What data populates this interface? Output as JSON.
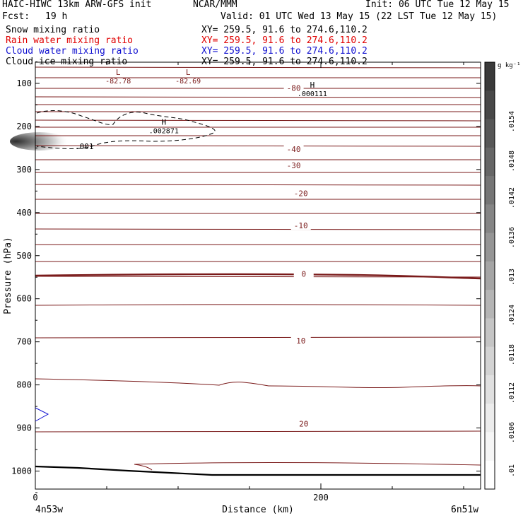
{
  "header": {
    "model_line": "HAIC-HIWC 13km ARW-GFS init",
    "org": "NCAR/MMM",
    "init": "Init: 06 UTC Tue 12 May 15",
    "fcst_label": "Fcst:",
    "fcst_value": "19 h",
    "valid": "Valid: 01 UTC Wed 13 May 15 (22 LST Tue 12 May 15)",
    "fields": [
      {
        "name": "Snow mixing ratio",
        "xy": "XY= 259.5, 91.6 to 274.6,110.2",
        "color": "#000000"
      },
      {
        "name": "Rain water mixing ratio",
        "xy": "XY= 259.5, 91.6 to 274.6,110.2",
        "color": "#e00000"
      },
      {
        "name": "Cloud water mixing ratio",
        "xy": "XY= 259.5, 91.6 to 274.6,110.2",
        "color": "#1010d0"
      },
      {
        "name": "Cloud ice mixing ratio",
        "xy": "XY= 259.5, 91.6 to 274.6,110.2",
        "color": "#000000"
      }
    ]
  },
  "chart_data": {
    "type": "contour",
    "ylabel": "Pressure (hPa)",
    "xlabel": "Distance (km)",
    "x_start_label": "4n53w",
    "x_end_label": "6n51w",
    "xlim": [
      0,
      310
    ],
    "ylim": [
      1050,
      50
    ],
    "x_ticks": [
      0,
      200
    ],
    "y_ticks": [
      100,
      200,
      300,
      400,
      500,
      600,
      700,
      800,
      900,
      1000
    ],
    "isotherm_color": "#7a1a1a",
    "temperature_labels": [
      {
        "text": "-80",
        "x": 181,
        "p": 111
      },
      {
        "text": "-40",
        "x": 181,
        "p": 253
      },
      {
        "text": "-30",
        "x": 181,
        "p": 290
      },
      {
        "text": "-20",
        "x": 186,
        "p": 355
      },
      {
        "text": "-10",
        "x": 186,
        "p": 430
      },
      {
        "text": "0",
        "x": 188,
        "p": 542
      },
      {
        "text": "10",
        "x": 186,
        "p": 697
      },
      {
        "text": "20",
        "x": 188,
        "p": 890
      }
    ],
    "extrema": [
      {
        "type": "L",
        "value": "-82.78",
        "x": 58,
        "p": 80
      },
      {
        "type": "L",
        "value": "-82.69",
        "x": 107,
        "p": 80
      },
      {
        "type": "H",
        "value": ".000111",
        "x": 194,
        "p": 110
      },
      {
        "type": "H",
        "value": ".002871",
        "x": 90,
        "p": 196
      }
    ],
    "cloud_contour_label": ".001",
    "colorbar": {
      "unit": "g kg⁻¹",
      "labels": [
        ".0154",
        ".0148",
        ".0142",
        ".0136",
        ".013",
        ".0124",
        ".0118",
        ".0112",
        ".0106",
        ".01"
      ],
      "colors": [
        "#3a3a3a",
        "#484848",
        "#575757",
        "#666666",
        "#757575",
        "#858585",
        "#959595",
        "#a5a5a5",
        "#b5b5b5",
        "#c5c5c5",
        "#d3d3d3",
        "#e0e0e0",
        "#ececec",
        "#f6f6f6",
        "#ffffff"
      ]
    }
  }
}
